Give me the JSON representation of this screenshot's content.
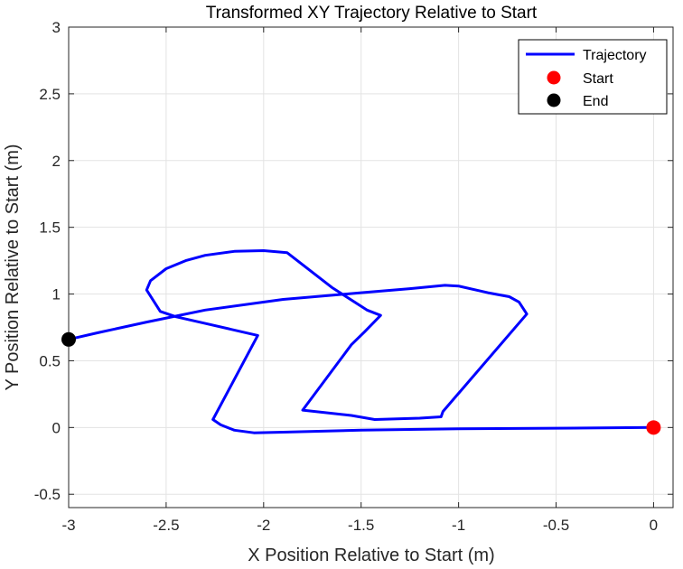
{
  "chart_data": {
    "type": "line",
    "title": "Transformed XY Trajectory Relative to Start",
    "xlabel": "X Position Relative to Start (m)",
    "ylabel": "Y Position Relative to Start (m)",
    "xlim": [
      -3,
      0.1
    ],
    "ylim": [
      -0.6,
      3
    ],
    "xticks": [
      -3,
      -2.5,
      -2,
      -1.5,
      -1,
      -0.5,
      0
    ],
    "xtick_labels": [
      "-3",
      "-2.5",
      "-2",
      "-1.5",
      "-1",
      "-0.5",
      "0"
    ],
    "yticks": [
      -0.5,
      0,
      0.5,
      1,
      1.5,
      2,
      2.5,
      3
    ],
    "ytick_labels": [
      "-0.5",
      "0",
      "0.5",
      "1",
      "1.5",
      "2",
      "2.5",
      "3"
    ],
    "grid": true,
    "legend_position": "top-right",
    "series": [
      {
        "name": "Trajectory",
        "color": "#0000ff",
        "points": [
          [
            0,
            0
          ],
          [
            -0.5,
            -0.005
          ],
          [
            -1,
            -0.01
          ],
          [
            -1.5,
            -0.02
          ],
          [
            -1.9,
            -0.035
          ],
          [
            -2.05,
            -0.04
          ],
          [
            -2.15,
            -0.02
          ],
          [
            -2.22,
            0.02
          ],
          [
            -2.26,
            0.06
          ],
          [
            -2.03,
            0.69
          ],
          [
            -2.3,
            0.78
          ],
          [
            -2.45,
            0.83
          ],
          [
            -2.53,
            0.87
          ],
          [
            -2.6,
            1.03
          ],
          [
            -2.58,
            1.1
          ],
          [
            -2.5,
            1.19
          ],
          [
            -2.4,
            1.25
          ],
          [
            -2.3,
            1.29
          ],
          [
            -2.15,
            1.32
          ],
          [
            -2.0,
            1.325
          ],
          [
            -1.88,
            1.31
          ],
          [
            -1.65,
            1.05
          ],
          [
            -1.47,
            0.88
          ],
          [
            -1.4,
            0.84
          ],
          [
            -1.48,
            0.72
          ],
          [
            -1.55,
            0.62
          ],
          [
            -1.8,
            0.13
          ],
          [
            -1.55,
            0.09
          ],
          [
            -1.43,
            0.06
          ],
          [
            -1.2,
            0.07
          ],
          [
            -1.09,
            0.08
          ],
          [
            -1.08,
            0.12
          ],
          [
            -0.65,
            0.85
          ],
          [
            -0.69,
            0.94
          ],
          [
            -0.74,
            0.98
          ],
          [
            -0.85,
            1.01
          ],
          [
            -1.0,
            1.06
          ],
          [
            -1.07,
            1.065
          ],
          [
            -1.25,
            1.04
          ],
          [
            -1.5,
            1.01
          ],
          [
            -1.9,
            0.96
          ],
          [
            -2.3,
            0.88
          ],
          [
            -2.6,
            0.79
          ],
          [
            -2.85,
            0.71
          ],
          [
            -3,
            0.66
          ]
        ]
      },
      {
        "name": "Start",
        "color": "#ff0000",
        "points": [
          [
            0,
            0
          ]
        ]
      },
      {
        "name": "End",
        "color": "#000000",
        "points": [
          [
            -3,
            0.66
          ]
        ]
      }
    ]
  }
}
